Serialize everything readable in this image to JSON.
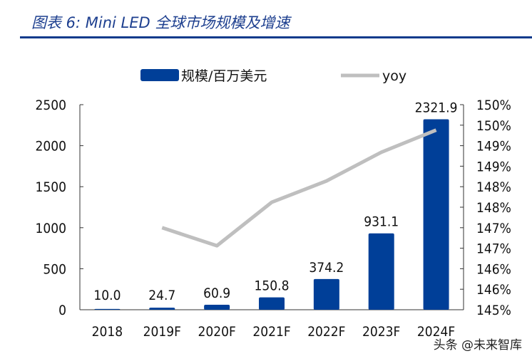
{
  "title": "图表 6:  Mini LED 全球市场规模及增速",
  "watermark": "头条 @未来智库",
  "chart_data": {
    "type": "bar",
    "categories": [
      "2018",
      "2019F",
      "2020F",
      "2021F",
      "2022F",
      "2023F",
      "2024F"
    ],
    "series": [
      {
        "name": "规模/百万美元",
        "type": "bar",
        "axis": "left",
        "color": "#003f98",
        "values": [
          10.0,
          24.7,
          60.9,
          150.8,
          374.2,
          931.1,
          2321.9
        ],
        "labels": [
          "10.0",
          "24.7",
          "60.9",
          "150.8",
          "374.2",
          "931.1",
          "2321.9"
        ]
      },
      {
        "name": "yoy",
        "type": "line",
        "axis": "right",
        "color": "#bfbfbf",
        "values": [
          null,
          147.0,
          146.56,
          147.62,
          148.14,
          148.84,
          149.38
        ]
      }
    ],
    "yleft": {
      "lim": [
        0,
        2500
      ],
      "ticks": [
        "0",
        "500",
        "1000",
        "1500",
        "2000",
        "2500"
      ]
    },
    "yright": {
      "lim": [
        145,
        150
      ],
      "unit": "%",
      "ticks": [
        "145%",
        "146%",
        "146%",
        "147%",
        "147%",
        "148%",
        "148%",
        "149%",
        "149%",
        "150%",
        "150%"
      ]
    },
    "legend": "top",
    "grid": false
  }
}
